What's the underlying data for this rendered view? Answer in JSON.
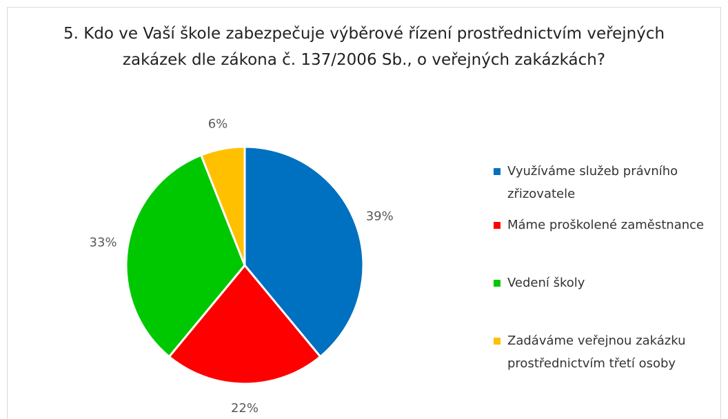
{
  "chart_data": {
    "type": "pie",
    "title": "5. Kdo ve Vaší škole zabezpečuje výběrové řízení prostřednictvím veřejných zakázek dle zákona č. 137/2006 Sb., o veřejných zakázkách?",
    "categories": [
      "Využíváme služeb právního zřizovatele",
      "Máme proškolené zaměstnance",
      "Vedení školy",
      "Zadáváme veřejnou zakázku prostřednictvím třetí osoby"
    ],
    "values": [
      39,
      22,
      33,
      6
    ],
    "value_labels": [
      "39%",
      "22%",
      "33%",
      "6%"
    ],
    "colors": [
      "#0070c0",
      "#ff0000",
      "#00c800",
      "#ffc000"
    ],
    "legend": "right"
  }
}
